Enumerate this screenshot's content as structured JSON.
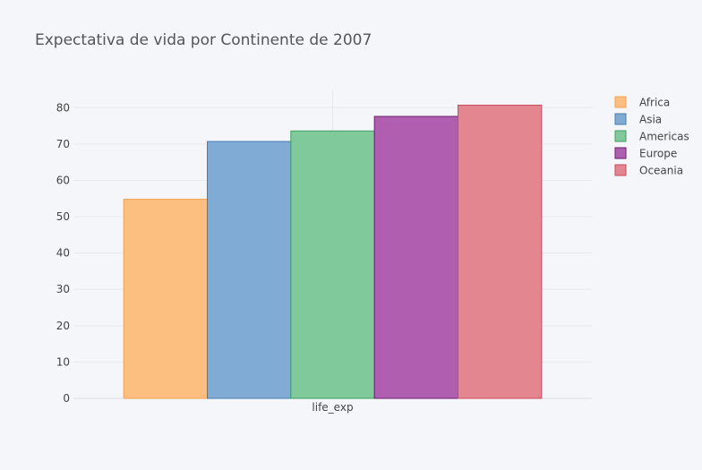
{
  "chart_data": {
    "type": "bar",
    "title": "Expectativa de vida por Continente de 2007",
    "categories": [
      "life_exp"
    ],
    "series": [
      {
        "name": "Africa",
        "values": [
          54.8
        ],
        "color": "#fdbf7f",
        "stroke": "#f6a04f"
      },
      {
        "name": "Asia",
        "values": [
          70.7
        ],
        "color": "#7fabd4",
        "stroke": "#4a7db0"
      },
      {
        "name": "Americas",
        "values": [
          73.6
        ],
        "color": "#80c99b",
        "stroke": "#3f9f62"
      },
      {
        "name": "Europe",
        "values": [
          77.6
        ],
        "color": "#af5eb0",
        "stroke": "#6a1f6e"
      },
      {
        "name": "Oceania",
        "values": [
          80.7
        ],
        "color": "#e48690",
        "stroke": "#c84a5c"
      }
    ],
    "yticks": [
      0,
      10,
      20,
      30,
      40,
      50,
      60,
      70,
      80
    ],
    "ylim": [
      0,
      85
    ],
    "xlabel": "",
    "ylabel": "",
    "grid": true,
    "legend_position": "right"
  }
}
